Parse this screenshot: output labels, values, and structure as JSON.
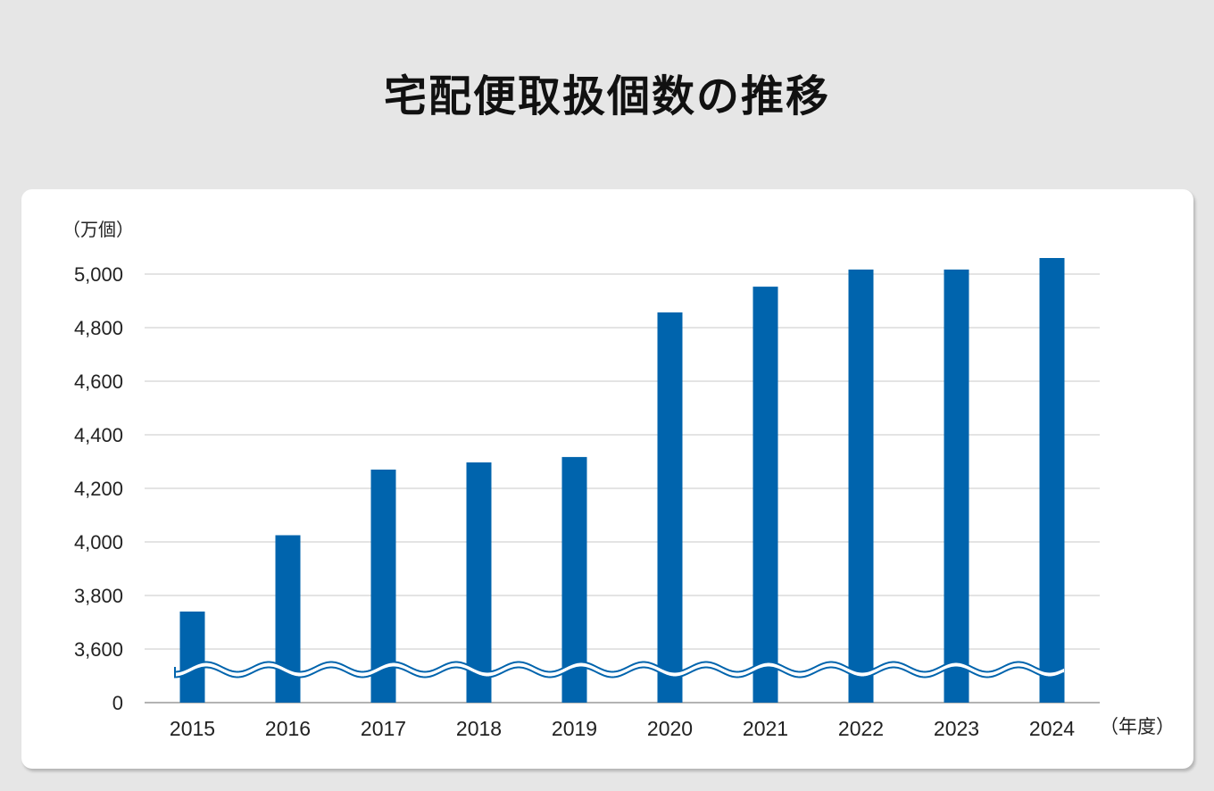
{
  "page": {
    "title": "宅配便取扱個数の推移"
  },
  "chart_data": {
    "type": "bar",
    "title": "宅配便取扱個数の推移",
    "ylabel": "（万個）",
    "xlabel": "（年度）",
    "categories": [
      "2015",
      "2016",
      "2017",
      "2018",
      "2019",
      "2020",
      "2021",
      "2022",
      "2023",
      "2024"
    ],
    "values": [
      3740,
      4025,
      4270,
      4297,
      4317,
      4857,
      4953,
      5017,
      5017,
      5060
    ],
    "ylim": [
      3600,
      5000
    ],
    "axis_break": true,
    "y_ticks": [
      {
        "value": 0,
        "label": "0"
      },
      {
        "value": 3600,
        "label": "3,600"
      },
      {
        "value": 3800,
        "label": "3,800"
      },
      {
        "value": 4000,
        "label": "4,000"
      },
      {
        "value": 4200,
        "label": "4,200"
      },
      {
        "value": 4400,
        "label": "4,400"
      },
      {
        "value": 4600,
        "label": "4,600"
      },
      {
        "value": 4800,
        "label": "4,800"
      },
      {
        "value": 5000,
        "label": "5,000"
      }
    ],
    "grid": true,
    "colors": {
      "bar": "#0064ad",
      "grid": "#d3d3d3",
      "axis": "#9a9a9a",
      "text": "#222222"
    }
  }
}
